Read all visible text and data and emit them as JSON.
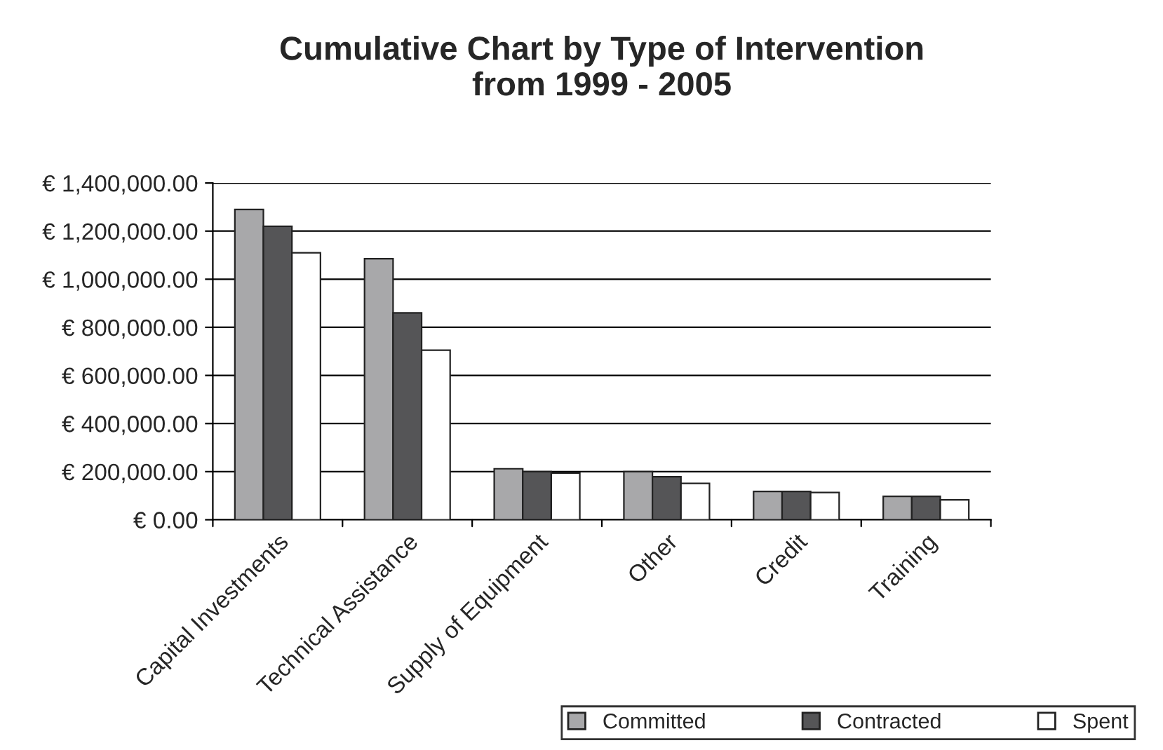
{
  "chart_data": {
    "type": "bar",
    "title": "Cumulative Chart by Type of Intervention\nfrom 1999 - 2005",
    "categories": [
      "Capital Investments",
      "Technical Assistance",
      "Supply of Equipment",
      "Other",
      "Credit",
      "Training"
    ],
    "series": [
      {
        "name": "Committed",
        "color": "#a8a8aa",
        "values": [
          1290000,
          1085000,
          212000,
          200000,
          118000,
          97000
        ]
      },
      {
        "name": "Contracted",
        "color": "#555557",
        "values": [
          1220000,
          860000,
          200000,
          179000,
          118000,
          97000
        ]
      },
      {
        "name": "Spent",
        "color": "#ffffff",
        "values": [
          1110000,
          705000,
          194000,
          151000,
          113000,
          83000
        ]
      }
    ],
    "ylim": [
      0,
      1400000
    ],
    "yticks": [
      {
        "value": 0,
        "label": "€ 0.00"
      },
      {
        "value": 200000,
        "label": "€ 200,000.00"
      },
      {
        "value": 400000,
        "label": "€ 400,000.00"
      },
      {
        "value": 600000,
        "label": "€ 600,000.00"
      },
      {
        "value": 800000,
        "label": "€ 800,000.00"
      },
      {
        "value": 1000000,
        "label": "€ 1,000,000.00"
      },
      {
        "value": 1200000,
        "label": "€ 1,200,000.00"
      },
      {
        "value": 1400000,
        "label": "€ 1,400,000.00"
      }
    ],
    "grid": "y",
    "legend": "bottom right"
  }
}
